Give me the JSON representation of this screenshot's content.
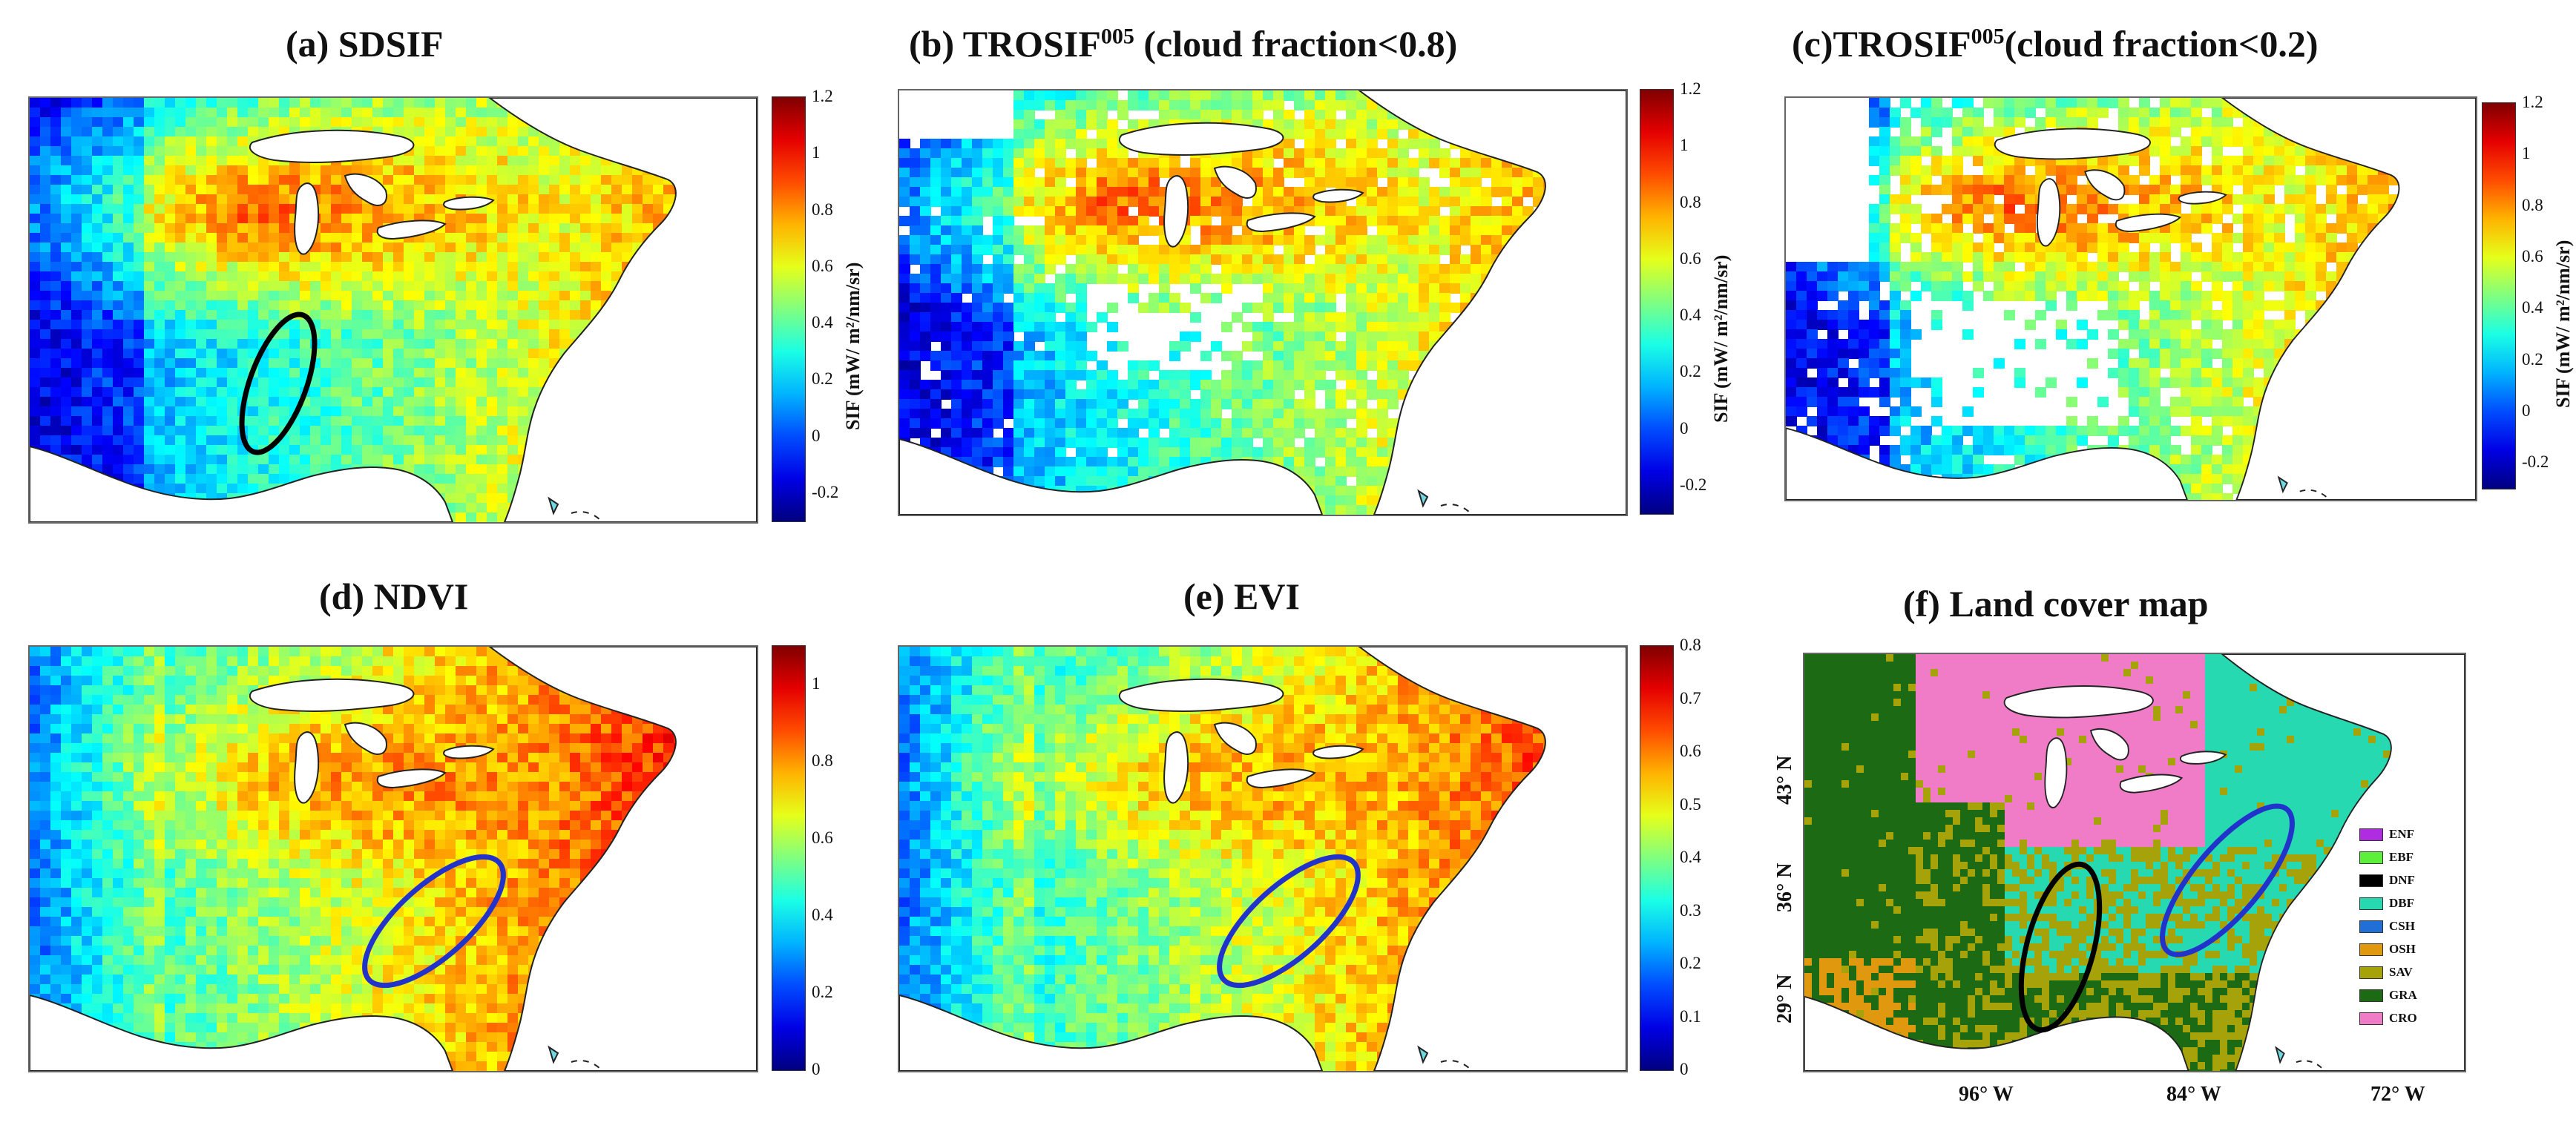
{
  "chart_data": [
    {
      "type": "heatmap",
      "title_prefix": "(a) SDSIF",
      "title_sup": "",
      "title_suffix": "",
      "colorbar_label": "SIF (mW/ m²/nm/sr)",
      "colorbar_ticks": [
        "1.2",
        "1",
        "0.8",
        "0.6",
        "0.4",
        "0.2",
        "0",
        "-0.2"
      ],
      "colorbar_range": [
        -0.3,
        1.2
      ],
      "cloud_mask": "none",
      "annotation": "black ellipse over lower Mississippi valley"
    },
    {
      "type": "heatmap",
      "title_prefix": "(b) TROSIF",
      "title_sup": "005",
      "title_suffix": " (cloud fraction<0.8)",
      "colorbar_label": "SIF (mW/ m²/nm/sr)",
      "colorbar_ticks": [
        "1.2",
        "1",
        "0.8",
        "0.6",
        "0.4",
        "0.2",
        "0",
        "-0.2"
      ],
      "colorbar_range": [
        -0.3,
        1.2
      ],
      "cloud_mask": "cloud fraction<0.8"
    },
    {
      "type": "heatmap",
      "title_prefix": "(c)TROSIF",
      "title_sup": "005",
      "title_suffix": "(cloud fraction<0.2)",
      "colorbar_label": "SIF (mW/ m²/nm/sr)",
      "colorbar_ticks": [
        "1.2",
        "1",
        "0.8",
        "0.6",
        "0.4",
        "0.2",
        "0",
        "-0.2"
      ],
      "colorbar_range": [
        -0.3,
        1.2
      ],
      "cloud_mask": "cloud fraction<0.2"
    },
    {
      "type": "heatmap",
      "title_prefix": "(d) NDVI",
      "title_sup": "",
      "title_suffix": "",
      "colorbar_ticks": [
        "1",
        "0.8",
        "0.6",
        "0.4",
        "0.2",
        "0"
      ],
      "colorbar_range": [
        0,
        1.1
      ],
      "annotation": "blue ellipse over Appalachian region"
    },
    {
      "type": "heatmap",
      "title_prefix": "(e) EVI",
      "title_sup": "",
      "title_suffix": "",
      "colorbar_ticks": [
        "0.8",
        "0.7",
        "0.6",
        "0.5",
        "0.4",
        "0.3",
        "0.2",
        "0.1",
        "0"
      ],
      "colorbar_range": [
        0,
        0.8
      ],
      "annotation": "blue ellipse over Appalachian region"
    },
    {
      "type": "heatmap",
      "title_prefix": "(f) Land cover map",
      "title_sup": "",
      "title_suffix": "",
      "xticks": [
        "96° W",
        "84° W",
        "72° W"
      ],
      "yticks": [
        "43° N",
        "36° N",
        "29° N"
      ],
      "legend": [
        {
          "label": "ENF",
          "color": "#b02ce0"
        },
        {
          "label": "EBF",
          "color": "#5cf03a"
        },
        {
          "label": "DNF",
          "color": "#000000"
        },
        {
          "label": "DBF",
          "color": "#27d9b0"
        },
        {
          "label": "CSH",
          "color": "#1f6fd6"
        },
        {
          "label": "OSH",
          "color": "#e0980e"
        },
        {
          "label": "SAV",
          "color": "#a6a30a"
        },
        {
          "label": "GRA",
          "color": "#1d6a14"
        },
        {
          "label": "CRO",
          "color": "#f07cc8"
        }
      ],
      "annotations": [
        "black ellipse over lower Mississippi valley",
        "blue ellipse over Appalachian region"
      ]
    }
  ]
}
